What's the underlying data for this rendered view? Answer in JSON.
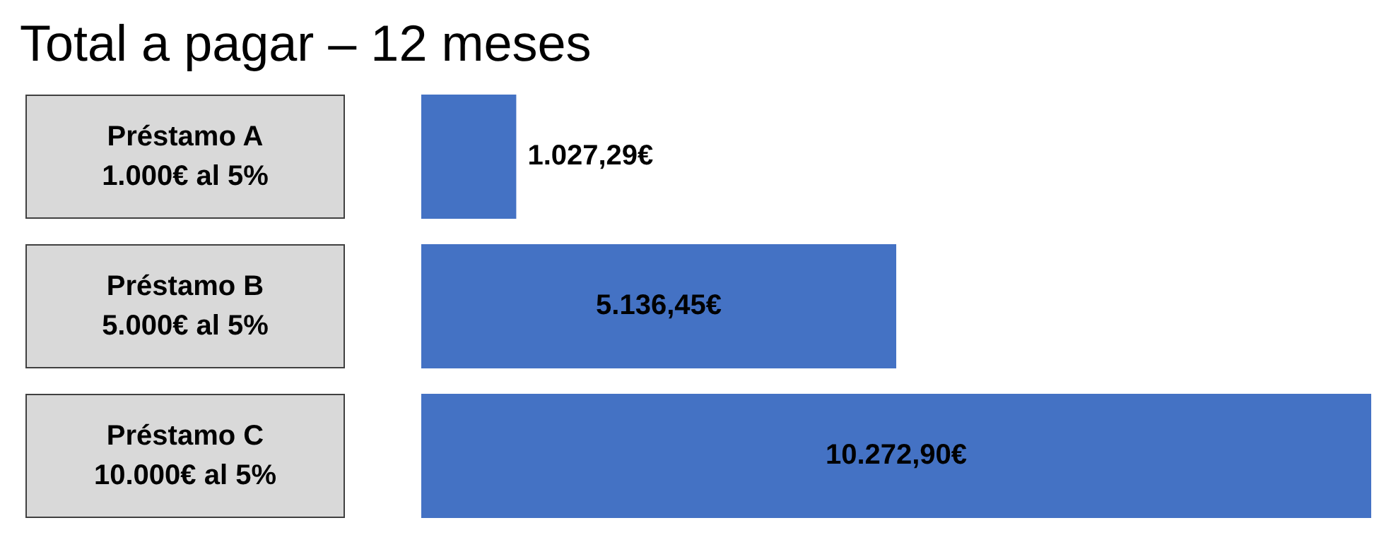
{
  "chart_data": {
    "type": "bar",
    "orientation": "horizontal",
    "title": "Total a pagar – 12 meses",
    "categories": [
      "Préstamo A\n1.000€ al 5%",
      "Préstamo B\n5.000€ al 5%",
      "Préstamo C\n10.000€ al 5%"
    ],
    "values": [
      1027.29,
      5136.45,
      10272.9
    ],
    "value_labels": [
      "1.027,29€",
      "5.136,45€",
      "10.272,90€"
    ],
    "color": "#4472c4",
    "tick_labels": "y"
  }
}
